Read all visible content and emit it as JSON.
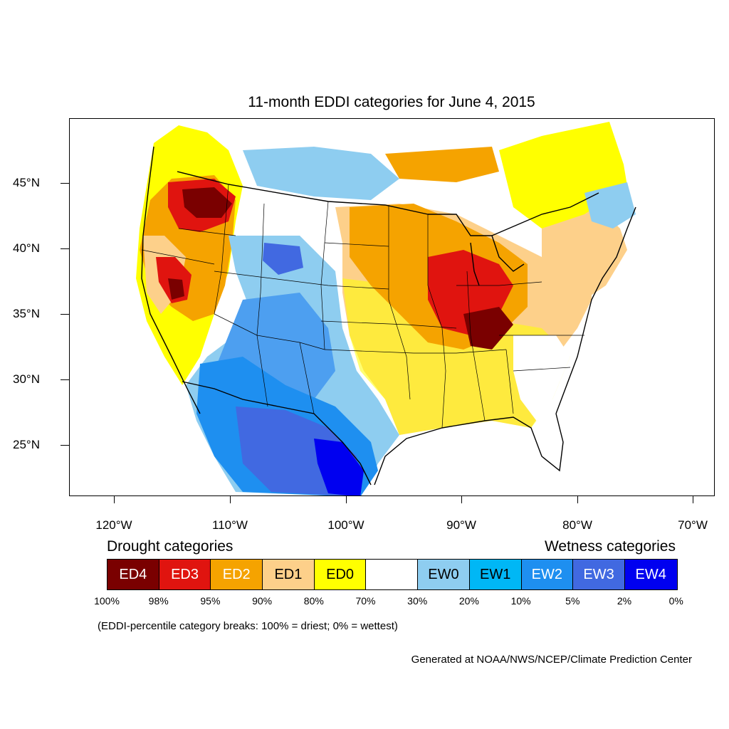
{
  "title": "11-month EDDI categories for June 4, 2015",
  "lat_labels": [
    "45°N",
    "40°N",
    "35°N",
    "30°N",
    "25°N"
  ],
  "lon_labels": [
    "120°W",
    "110°W",
    "100°W",
    "90°W",
    "80°W",
    "70°W"
  ],
  "legend": {
    "drought_heading": "Drought categories",
    "wetness_heading": "Wetness categories",
    "categories": [
      {
        "label": "ED4",
        "color": "#7a0000",
        "text_color": "#ffffff"
      },
      {
        "label": "ED3",
        "color": "#e0140f",
        "text_color": "#ffffff"
      },
      {
        "label": "ED2",
        "color": "#f5a300",
        "text_color": "#ffffff"
      },
      {
        "label": "ED1",
        "color": "#fdd08a",
        "text_color": "#000000"
      },
      {
        "label": "ED0",
        "color": "#ffff00",
        "text_color": "#000000"
      },
      {
        "label": "",
        "color": "#ffffff",
        "text_color": "#000000"
      },
      {
        "label": "EW0",
        "color": "#8ecdf0",
        "text_color": "#000000"
      },
      {
        "label": "EW1",
        "color": "#00b7f5",
        "text_color": "#000000"
      },
      {
        "label": "EW2",
        "color": "#1e8ff0",
        "text_color": "#ffffff"
      },
      {
        "label": "EW3",
        "color": "#4169e1",
        "text_color": "#ffffff"
      },
      {
        "label": "EW4",
        "color": "#0000f0",
        "text_color": "#ffffff"
      }
    ],
    "breaks": [
      "100%",
      "98%",
      "95%",
      "90%",
      "80%",
      "70%",
      "30%",
      "20%",
      "10%",
      "5%",
      "2%",
      "0%"
    ]
  },
  "note": "(EDDI-percentile category breaks: 100% = driest; 0% = wettest)",
  "credit": "Generated at NOAA/NWS/NCEP/Climate Prediction Center",
  "map": {
    "lat_range": [
      21,
      50
    ],
    "lon_range": [
      -124,
      -68
    ],
    "projection": "lambert-conformal"
  }
}
